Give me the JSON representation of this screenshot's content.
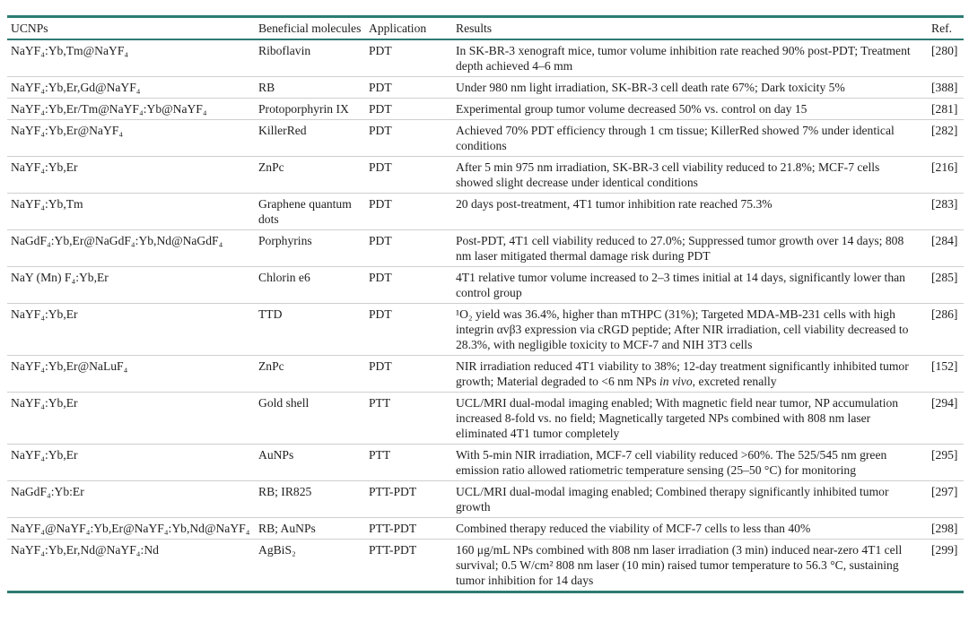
{
  "table": {
    "headers": {
      "ucnps": "UCNPs",
      "molecules": "Beneficial molecules",
      "application": "Application",
      "results": "Results",
      "ref": "Ref."
    },
    "accent_color": "#2e7b72",
    "rows": [
      {
        "ucnps": "NaYF₄:Yb,Tm@NaYF₄",
        "molecules": "Riboflavin",
        "application": "PDT",
        "results": "In SK-BR-3 xenograft mice, tumor volume inhibition rate reached 90% post-PDT; Treatment depth achieved 4–6 mm",
        "ref": "[280]"
      },
      {
        "ucnps": "NaYF₄:Yb,Er,Gd@NaYF₄",
        "molecules": "RB",
        "application": "PDT",
        "results": "Under 980 nm light irradiation, SK-BR-3 cell death rate 67%; Dark toxicity 5%",
        "ref": "[388]"
      },
      {
        "ucnps": "NaYF₄:Yb,Er/Tm@NaYF₄:Yb@NaYF₄",
        "molecules": "Protoporphyrin IX",
        "application": "PDT",
        "results": "Experimental group tumor volume decreased 50% vs. control on day 15",
        "ref": "[281]"
      },
      {
        "ucnps": "NaYF₄:Yb,Er@NaYF₄",
        "molecules": "KillerRed",
        "application": "PDT",
        "results": "Achieved 70% PDT efficiency through 1 cm tissue; KillerRed showed 7% under identical conditions",
        "ref": "[282]"
      },
      {
        "ucnps": "NaYF₄:Yb,Er",
        "molecules": "ZnPc",
        "application": "PDT",
        "results": "After 5 min 975 nm irradiation, SK-BR-3 cell viability reduced to 21.8%; MCF-7 cells showed slight decrease under identical conditions",
        "ref": "[216]"
      },
      {
        "ucnps": "NaYF₄:Yb,Tm",
        "molecules": "Graphene quantum dots",
        "application": "PDT",
        "results": "20 days post-treatment, 4T1 tumor inhibition rate reached 75.3%",
        "ref": "[283]"
      },
      {
        "ucnps": "NaGdF₄:Yb,Er@NaGdF₄:Yb,Nd@NaGdF₄",
        "molecules": "Porphyrins",
        "application": "PDT",
        "results": "Post-PDT, 4T1 cell viability reduced to 27.0%; Suppressed tumor growth over 14 days; 808 nm laser mitigated thermal damage risk during PDT",
        "ref": "[284]"
      },
      {
        "ucnps": "NaY (Mn) F₄:Yb,Er",
        "molecules": "Chlorin e6",
        "application": "PDT",
        "results": "4T1 relative tumor volume increased to 2–3 times initial at 14 days, significantly lower than control group",
        "ref": "[285]"
      },
      {
        "ucnps": "NaYF₄:Yb,Er",
        "molecules": "TTD",
        "application": "PDT",
        "results": "¹O₂ yield was 36.4%, higher than mTHPC (31%); Targeted MDA-MB-231 cells with high integrin αvβ3 expression via cRGD peptide; After NIR irradiation, cell viability decreased to 28.3%, with negligible toxicity to MCF-7 and NIH 3T3 cells",
        "ref": "[286]"
      },
      {
        "ucnps": "NaYF₄:Yb,Er@NaLuF₄",
        "molecules": "ZnPc",
        "application": "PDT",
        "results": "NIR irradiation reduced 4T1 viability to 38%; 12-day treatment significantly inhibited tumor growth; Material degraded to <6 nm NPs in vivo, excreted renally",
        "results_em": "in vivo",
        "ref": "[152]"
      },
      {
        "ucnps": "NaYF₄:Yb,Er",
        "molecules": "Gold shell",
        "application": "PTT",
        "results": "UCL/MRI dual-modal imaging enabled; With magnetic field near tumor, NP accumulation increased 8-fold vs. no field; Magnetically targeted NPs combined with 808 nm laser eliminated 4T1 tumor completely",
        "ref": "[294]"
      },
      {
        "ucnps": "NaYF₄:Yb,Er",
        "molecules": "AuNPs",
        "application": "PTT",
        "results": "With 5-min NIR irradiation, MCF-7 cell viability reduced >60%. The 525/545 nm green emission ratio allowed ratiometric temperature sensing (25–50 °C) for monitoring",
        "ref": "[295]"
      },
      {
        "ucnps": "NaGdF₄:Yb:Er",
        "molecules": "RB; IR825",
        "application": "PTT-PDT",
        "results": "UCL/MRI dual-modal imaging enabled; Combined therapy significantly inhibited tumor growth",
        "ref": "[297]"
      },
      {
        "ucnps": "NaYF₄@NaYF₄:Yb,Er@NaYF₄:Yb,Nd@NaYF₄",
        "molecules": "RB; AuNPs",
        "application": "PTT-PDT",
        "results": "Combined therapy reduced the viability of MCF-7 cells to less than 40%",
        "ref": "[298]"
      },
      {
        "ucnps": "NaYF₄:Yb,Er,Nd@NaYF₄:Nd",
        "molecules": "AgBiS₂",
        "application": "PTT-PDT",
        "results": "160 μg/mL NPs combined with 808 nm laser irradiation (3 min) induced near-zero 4T1 cell survival; 0.5 W/cm² 808 nm laser (10 min) raised tumor temperature to 56.3 °C, sustaining tumor inhibition for 14 days",
        "ref": "[299]"
      }
    ]
  }
}
